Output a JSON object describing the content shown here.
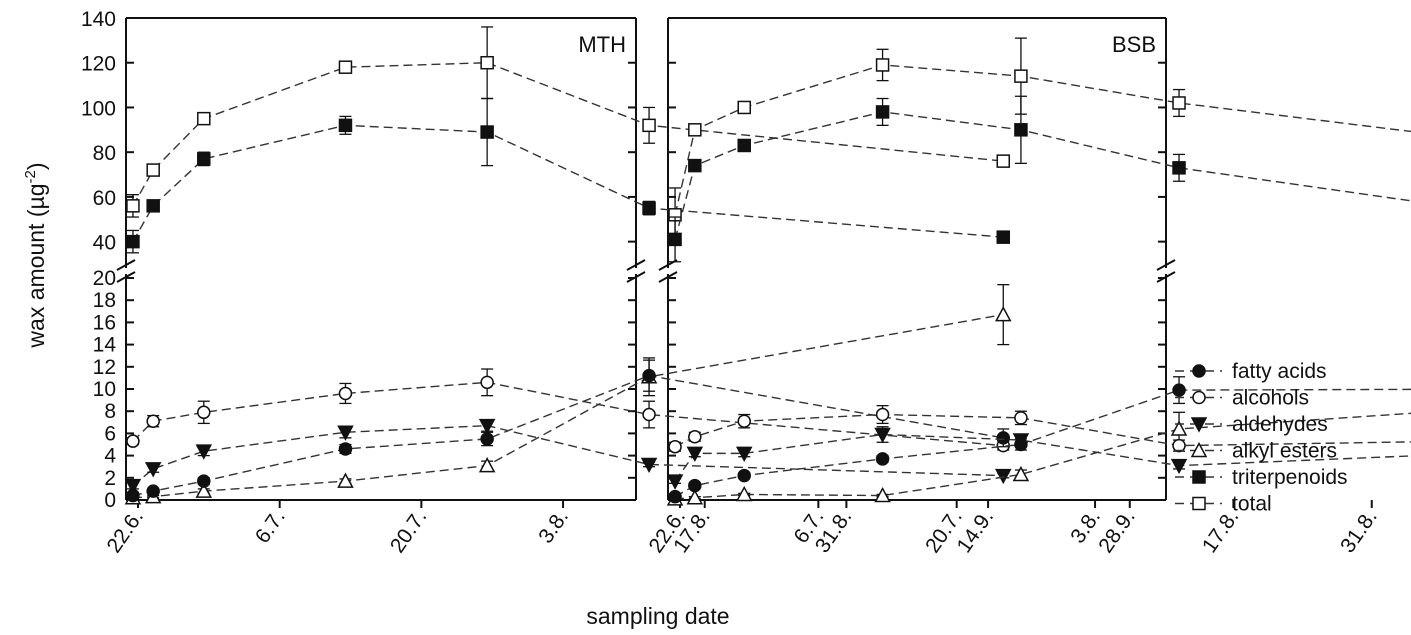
{
  "chart_data": {
    "type": "line",
    "xlabel": "sampling date",
    "ylabel": "wax amount (µg",
    "ylabel_unit_tail": "-2",
    "ylabel_close": ")",
    "x_ticks": [
      "22.6.",
      "6.7.",
      "20.7.",
      "3.8.",
      "17.8.",
      "31.8.",
      "14.9.",
      "28.9."
    ],
    "y_ticks_upper": [
      "40",
      "60",
      "80",
      "100",
      "120",
      "140"
    ],
    "y_ticks_lower": [
      "0",
      "2",
      "4",
      "6",
      "8",
      "10",
      "12",
      "14",
      "16",
      "18",
      "20"
    ],
    "upper_ylim": [
      30,
      140
    ],
    "lower_ylim": [
      0,
      20
    ],
    "legend": [
      "fatty acids",
      "alcohols",
      "aldehydes",
      "alkyl esters",
      "triterpenoids",
      "total"
    ],
    "panels": [
      {
        "label": "MTH",
        "series": [
          {
            "name": "fatty acids",
            "marker": "circle-filled",
            "points": [
              [
                -0.5,
                0.4,
                0.3
              ],
              [
                1.5,
                0.8,
                0.2
              ],
              [
                6.5,
                1.7,
                0.3
              ],
              [
                20.5,
                4.6,
                0.4
              ],
              [
                34.5,
                5.5,
                0.6
              ],
              [
                50.5,
                11.2,
                1.4
              ],
              [
                85.5,
                5.6,
                0.8
              ]
            ]
          },
          {
            "name": "alcohols",
            "marker": "circle-open",
            "points": [
              [
                -0.5,
                5.3,
                0.3
              ],
              [
                1.5,
                7.1,
                0.5
              ],
              [
                6.5,
                7.9,
                1.0
              ],
              [
                20.5,
                9.6,
                0.9
              ],
              [
                34.5,
                10.6,
                1.2
              ],
              [
                50.5,
                7.7,
                1.2
              ],
              [
                85.5,
                4.9,
                0.4
              ]
            ]
          },
          {
            "name": "aldehydes",
            "marker": "triangle-down-filled",
            "points": [
              [
                -0.5,
                1.3,
                0.3
              ],
              [
                1.5,
                2.8,
                0.3
              ],
              [
                6.5,
                4.4,
                0.4
              ],
              [
                20.5,
                6.1,
                0.5
              ],
              [
                34.5,
                6.7,
                0.5
              ],
              [
                50.5,
                3.2,
                0.2
              ],
              [
                85.5,
                2.2,
                0.2
              ]
            ]
          },
          {
            "name": "alkyl esters",
            "marker": "triangle-up-open",
            "points": [
              [
                -0.5,
                0.2,
                0.1
              ],
              [
                1.5,
                0.3,
                0.1
              ],
              [
                6.5,
                0.8,
                0.2
              ],
              [
                20.5,
                1.7,
                0.2
              ],
              [
                34.5,
                3.1,
                0.4
              ],
              [
                50.5,
                11.1,
                1.7
              ],
              [
                85.5,
                16.7,
                2.7
              ]
            ]
          },
          {
            "name": "triterpenoids",
            "marker": "square-filled",
            "points": [
              [
                -0.5,
                40,
                5
              ],
              [
                1.5,
                56,
                2
              ],
              [
                6.5,
                77,
                3
              ],
              [
                20.5,
                92,
                4
              ],
              [
                34.5,
                89,
                15
              ],
              [
                50.5,
                55,
                3
              ],
              [
                85.5,
                42,
                2
              ]
            ]
          },
          {
            "name": "total",
            "marker": "square-open",
            "points": [
              [
                -0.5,
                56,
                5
              ],
              [
                1.5,
                72,
                2
              ],
              [
                6.5,
                95,
                2
              ],
              [
                20.5,
                118,
                2
              ],
              [
                34.5,
                120,
                16
              ],
              [
                50.5,
                92,
                8
              ],
              [
                85.5,
                76,
                2
              ]
            ]
          }
        ]
      },
      {
        "label": "BSB",
        "series": [
          {
            "name": "fatty acids",
            "marker": "circle-filled",
            "points": [
              [
                -0.5,
                0.3,
                0.2
              ],
              [
                1.5,
                1.3,
                0.2
              ],
              [
                6.5,
                2.2,
                0.2
              ],
              [
                20.5,
                3.7,
                0.3
              ],
              [
                34.5,
                5.0,
                0.5
              ],
              [
                50.5,
                9.9,
                1.2
              ],
              [
                85.5,
                10.0,
                1.3
              ]
            ]
          },
          {
            "name": "alcohols",
            "marker": "circle-open",
            "points": [
              [
                -0.5,
                4.8,
                0.4
              ],
              [
                1.5,
                5.7,
                0.4
              ],
              [
                6.5,
                7.1,
                0.6
              ],
              [
                20.5,
                7.7,
                0.8
              ],
              [
                34.5,
                7.4,
                0.6
              ],
              [
                50.5,
                4.9,
                0.5
              ],
              [
                85.5,
                5.4,
                0.5
              ]
            ]
          },
          {
            "name": "aldehydes",
            "marker": "triangle-down-filled",
            "points": [
              [
                -0.5,
                1.7,
                0.2
              ],
              [
                1.5,
                4.2,
                0.3
              ],
              [
                6.5,
                4.2,
                0.3
              ],
              [
                20.5,
                5.9,
                0.7
              ],
              [
                34.5,
                5.4,
                0.5
              ],
              [
                50.5,
                3.1,
                0.3
              ],
              [
                85.5,
                4.4,
                0.4
              ]
            ]
          },
          {
            "name": "alkyl esters",
            "marker": "triangle-up-open",
            "points": [
              [
                -0.5,
                0.1,
                0.1
              ],
              [
                1.5,
                0.2,
                0.1
              ],
              [
                6.5,
                0.5,
                0.1
              ],
              [
                20.5,
                0.4,
                0.1
              ],
              [
                34.5,
                2.3,
                0.4
              ],
              [
                50.5,
                6.4,
                1.5
              ],
              [
                85.5,
                8.5,
                0.8
              ]
            ]
          },
          {
            "name": "triterpenoids",
            "marker": "square-filled",
            "points": [
              [
                -0.5,
                41,
                10
              ],
              [
                1.5,
                74,
                1
              ],
              [
                6.5,
                83,
                2
              ],
              [
                20.5,
                98,
                6
              ],
              [
                34.5,
                90,
                15
              ],
              [
                50.5,
                73,
                6
              ],
              [
                85.5,
                51,
                12
              ]
            ]
          },
          {
            "name": "total",
            "marker": "square-open",
            "points": [
              [
                -0.5,
                52,
                12
              ],
              [
                1.5,
                90,
                1
              ],
              [
                6.5,
                100,
                2
              ],
              [
                20.5,
                119,
                7
              ],
              [
                34.5,
                114,
                17
              ],
              [
                50.5,
                102,
                6
              ],
              [
                85.5,
                83,
                15
              ]
            ]
          }
        ]
      }
    ]
  }
}
